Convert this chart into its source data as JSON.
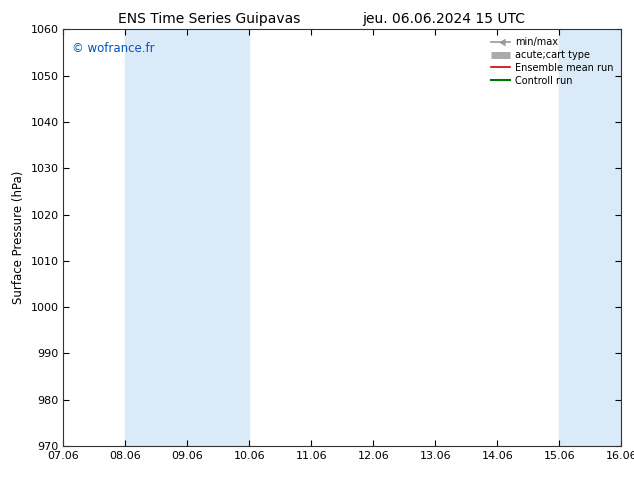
{
  "title_left": "ENS Time Series Guipavas",
  "title_right": "jeu. 06.06.2024 15 UTC",
  "ylabel": "Surface Pressure (hPa)",
  "ylim": [
    970,
    1060
  ],
  "yticks": [
    970,
    980,
    990,
    1000,
    1010,
    1020,
    1030,
    1040,
    1050,
    1060
  ],
  "xtick_labels": [
    "07.06",
    "08.06",
    "09.06",
    "10.06",
    "11.06",
    "12.06",
    "13.06",
    "14.06",
    "15.06",
    "16.06"
  ],
  "xtick_positions": [
    0,
    1,
    2,
    3,
    4,
    5,
    6,
    7,
    8,
    9
  ],
  "watermark": "© wofrance.fr",
  "watermark_color": "#0055bb",
  "background_color": "#ffffff",
  "shaded_bands": [
    {
      "xmin": 1,
      "xmax": 2,
      "color": "#daeaf8"
    },
    {
      "xmin": 2,
      "xmax": 3,
      "color": "#daeaf8"
    },
    {
      "xmin": 8,
      "xmax": 9,
      "color": "#daeaf8"
    },
    {
      "xmin": 9,
      "xmax": 9.5,
      "color": "#daeaf8"
    }
  ],
  "legend_entries": [
    {
      "label": "min/max",
      "color": "#999999",
      "lw": 1.2,
      "style": "minmax"
    },
    {
      "label": "acute;cart type",
      "color": "#aaaaaa",
      "lw": 5,
      "style": "thick"
    },
    {
      "label": "Ensemble mean run",
      "color": "#cc0000",
      "lw": 1.2,
      "style": "line"
    },
    {
      "label": "Controll run",
      "color": "#007700",
      "lw": 1.5,
      "style": "line"
    }
  ],
  "title_fontsize": 10,
  "tick_fontsize": 8,
  "ylabel_fontsize": 8.5
}
